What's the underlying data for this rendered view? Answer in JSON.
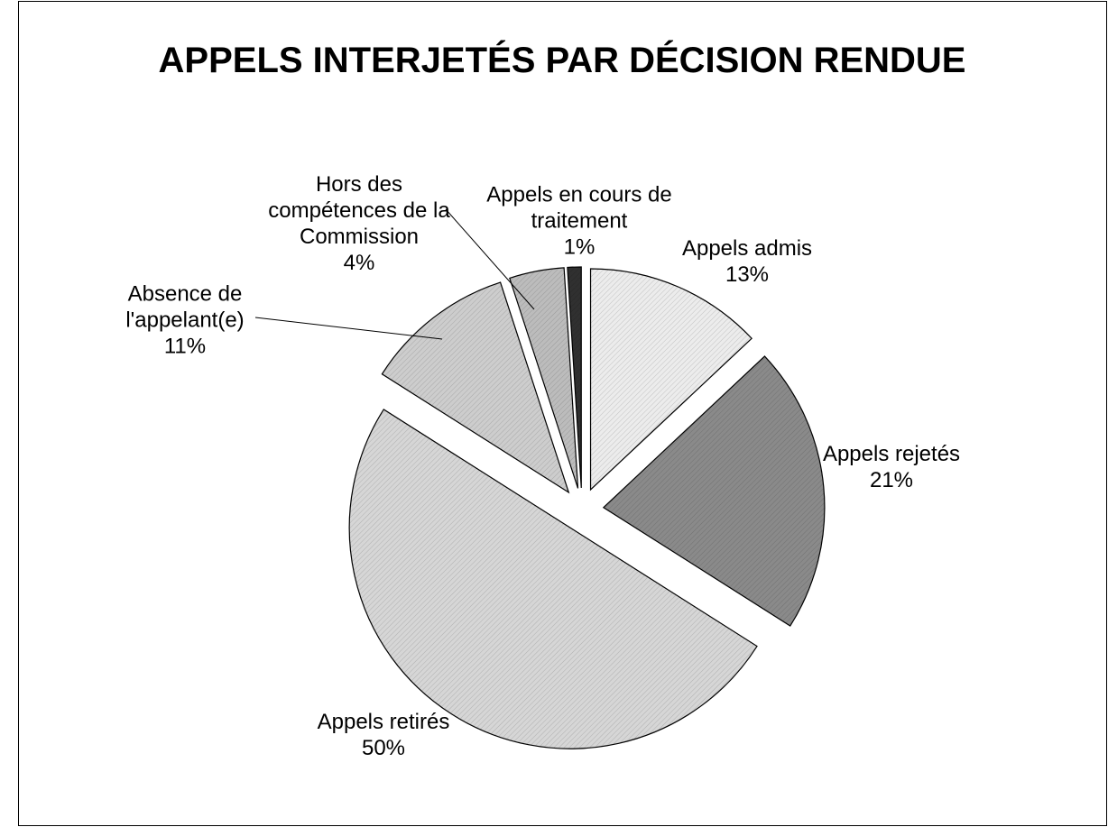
{
  "chart_data": {
    "type": "pie",
    "title": "APPELS INTERJETÉS PAR DÉCISION RENDUE",
    "categories": [
      "Appels admis",
      "Appels rejetés",
      "Appels retirés",
      "Absence de l'appelant(e)",
      "Hors des compétences de la Commission",
      "Appels en cours de traitement"
    ],
    "values": [
      13,
      21,
      50,
      11,
      4,
      1
    ],
    "value_labels": [
      "13%",
      "21%",
      "50%",
      "11%",
      "4%",
      "1%"
    ],
    "colors": [
      "#ececec",
      "#8a8a8a",
      "#d6d6d6",
      "#cdcdcd",
      "#bcbcbc",
      "#303030"
    ]
  }
}
